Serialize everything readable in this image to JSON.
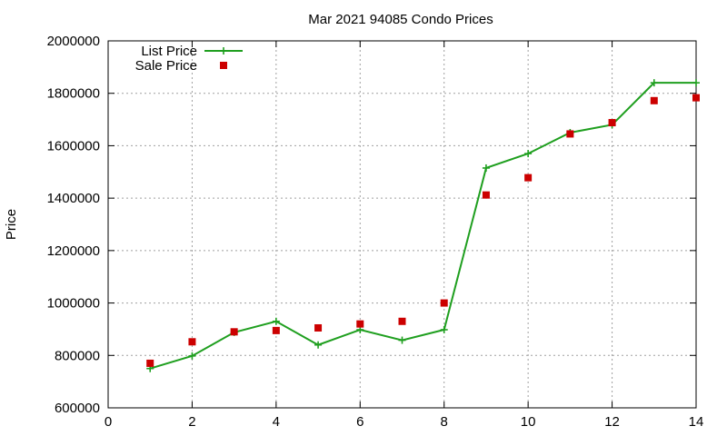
{
  "chart_data": {
    "type": "line",
    "title": "Mar 2021 94085 Condo Prices",
    "xlabel": "",
    "ylabel": "Price",
    "xlim": [
      0,
      14
    ],
    "ylim": [
      600000,
      2000000
    ],
    "x_ticks": [
      0,
      2,
      4,
      6,
      8,
      10,
      12,
      14
    ],
    "y_ticks": [
      600000,
      800000,
      1000000,
      1200000,
      1400000,
      1600000,
      1800000,
      2000000
    ],
    "grid": true,
    "legend_position": "top-left",
    "series": [
      {
        "name": "List Price",
        "style": "line-with-plus-markers",
        "color": "#1f9f1f",
        "x": [
          1,
          2,
          3,
          4,
          5,
          6,
          7,
          8,
          9,
          10,
          11,
          12,
          13,
          14
        ],
        "values": [
          750000,
          798000,
          888000,
          930000,
          840000,
          898000,
          858000,
          898000,
          1515000,
          1570000,
          1650000,
          1680000,
          1840000,
          1840000
        ]
      },
      {
        "name": "Sale Price",
        "style": "square-markers",
        "color": "#cc0000",
        "x": [
          1,
          2,
          3,
          4,
          5,
          6,
          7,
          8,
          9,
          10,
          11,
          12,
          13,
          14
        ],
        "values": [
          770000,
          852000,
          890000,
          895000,
          905000,
          920000,
          930000,
          1000000,
          1412000,
          1478000,
          1645000,
          1688000,
          1772000,
          1783000
        ]
      }
    ]
  }
}
